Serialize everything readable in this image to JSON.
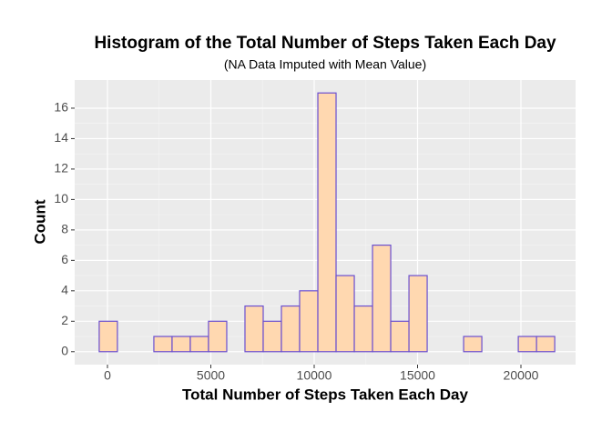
{
  "chart_data": {
    "type": "histogram",
    "title": "Histogram of the Total Number of Steps Taken Each Day",
    "subtitle": "(NA Data Imputed with Mean Value)",
    "x_label": "Total Number of Steps Taken Each Day",
    "y_label": "Count",
    "bins": [
      -400,
      481,
      1363,
      2244,
      3126,
      4007,
      4888,
      5770,
      6651,
      7533,
      8414,
      9295,
      10177,
      11058,
      11940,
      12821,
      13702,
      14584,
      15465,
      16347,
      17228,
      18109,
      18991,
      19872,
      20754,
      21635
    ],
    "values": [
      2,
      0,
      0,
      1,
      1,
      1,
      2,
      0,
      3,
      2,
      3,
      4,
      17,
      5,
      3,
      7,
      2,
      5,
      0,
      0,
      1,
      0,
      0,
      1,
      1
    ],
    "color": "#ffd8b0",
    "edge_color": "#6a4fd0",
    "xlim": [
      -1586,
      22643
    ],
    "xticks": [
      0,
      5000,
      10000,
      15000,
      20000
    ],
    "ylim": [
      -0.85,
      17.85
    ],
    "yticks": [
      0,
      2,
      4,
      6,
      8,
      10,
      12,
      14,
      16
    ],
    "grid": true,
    "minor_grid": true
  }
}
